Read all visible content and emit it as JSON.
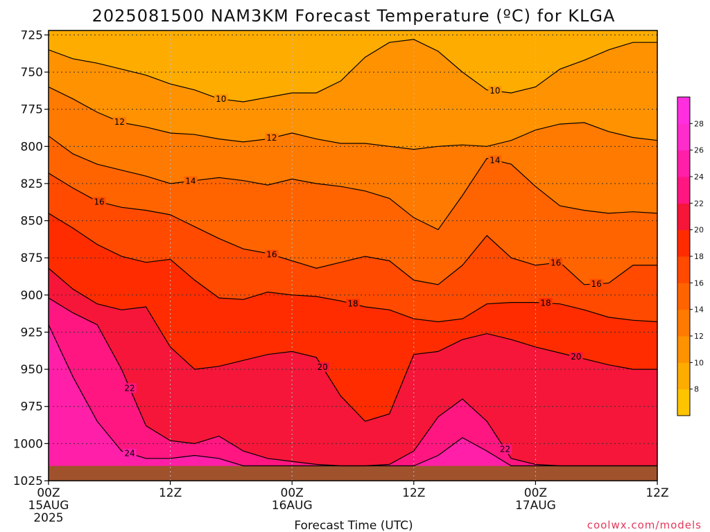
{
  "chart_data": {
    "type": "heatmap",
    "title": "2025081500 NAM3KM Forecast Temperature (ºC) for KLGA",
    "xlabel": "Forecast Time (UTC)",
    "ylabel": "",
    "credit": "coolwx.com/models",
    "y_ticks": [
      "725",
      "750",
      "775",
      "800",
      "825",
      "850",
      "875",
      "900",
      "925",
      "950",
      "975",
      "1000",
      "1025"
    ],
    "y_values": [
      725,
      750,
      775,
      800,
      825,
      850,
      875,
      900,
      925,
      950,
      975,
      1000,
      1025
    ],
    "ylim": [
      722,
      1025
    ],
    "x_ticks": [
      {
        "hour": 0,
        "label": "00Z",
        "date": "15AUG",
        "year": "2025"
      },
      {
        "hour": 12,
        "label": "12Z",
        "date": "",
        "year": ""
      },
      {
        "hour": 24,
        "label": "00Z",
        "date": "16AUG",
        "year": ""
      },
      {
        "hour": 36,
        "label": "12Z",
        "date": "",
        "year": ""
      },
      {
        "hour": 48,
        "label": "00Z",
        "date": "17AUG",
        "year": ""
      },
      {
        "hour": 60,
        "label": "12Z",
        "date": "",
        "year": ""
      }
    ],
    "xlim": [
      0,
      60
    ],
    "colorbar": {
      "labels": [
        "8",
        "10",
        "12",
        "14",
        "16",
        "18",
        "20",
        "22",
        "24",
        "26",
        "28"
      ],
      "colors": [
        "#ffc400",
        "#ffac00",
        "#ff9200",
        "#ff7a00",
        "#ff6400",
        "#ff4a00",
        "#ff2c00",
        "#f5163a",
        "#ff1680",
        "#ff1fa8",
        "#ff2ccc",
        "#ff2fe0"
      ]
    },
    "contours": [
      {
        "level": 10,
        "pressure": [
          735,
          741,
          744,
          748,
          752,
          758,
          762,
          768,
          770,
          767,
          764,
          764,
          756,
          740,
          730,
          728,
          736,
          750,
          762,
          764,
          760,
          748,
          742,
          735,
          730,
          730
        ],
        "labels": [
          {
            "hour": 17,
            "text": "10"
          },
          {
            "hour": 44,
            "text": "10"
          }
        ]
      },
      {
        "level": 12,
        "pressure": [
          760,
          768,
          777,
          784,
          787,
          791,
          792,
          795,
          797,
          795,
          791,
          795,
          798,
          798,
          800,
          802,
          800,
          799,
          800,
          796,
          789,
          785,
          784,
          790,
          794,
          796
        ],
        "labels": [
          {
            "hour": 7,
            "text": "12"
          },
          {
            "hour": 22,
            "text": "12"
          }
        ]
      },
      {
        "level": 14,
        "pressure": [
          793,
          805,
          812,
          816,
          820,
          825,
          823,
          821,
          823,
          826,
          822,
          825,
          827,
          830,
          835,
          848,
          856,
          833,
          808,
          812,
          827,
          840,
          843,
          845,
          844,
          845
        ],
        "labels": [
          {
            "hour": 14,
            "text": "14"
          },
          {
            "hour": 44,
            "text": "14"
          }
        ]
      },
      {
        "level": 16,
        "pressure": [
          818,
          828,
          837,
          841,
          843,
          846,
          854,
          862,
          869,
          872,
          877,
          882,
          878,
          874,
          877,
          890,
          893,
          880,
          860,
          875,
          880,
          878,
          893,
          892,
          880,
          880
        ],
        "labels": [
          {
            "hour": 5,
            "text": "16"
          },
          {
            "hour": 22,
            "text": "16"
          },
          {
            "hour": 50,
            "text": "16"
          },
          {
            "hour": 54,
            "text": "16"
          }
        ]
      },
      {
        "level": 18,
        "pressure": [
          845,
          855,
          866,
          874,
          878,
          876,
          890,
          902,
          903,
          898,
          900,
          901,
          904,
          908,
          910,
          916,
          918,
          916,
          906,
          905,
          905,
          906,
          910,
          915,
          917,
          918
        ],
        "labels": [
          {
            "hour": 30,
            "text": "18"
          },
          {
            "hour": 49,
            "text": "18"
          }
        ]
      },
      {
        "level": 20,
        "pressure": [
          882,
          896,
          906,
          910,
          908,
          935,
          950,
          948,
          944,
          940,
          938,
          942,
          968,
          985,
          980,
          940,
          938,
          930,
          926,
          930,
          935,
          939,
          943,
          947,
          950,
          950
        ],
        "labels": [
          {
            "hour": 27,
            "text": "20"
          },
          {
            "hour": 52,
            "text": "20"
          }
        ]
      },
      {
        "level": 22,
        "pressure": [
          902,
          912,
          920,
          950,
          988,
          998,
          1000,
          995,
          1005,
          1010,
          1012,
          1014,
          1015,
          1015,
          1014,
          1005,
          982,
          970,
          985,
          1010,
          1014,
          1015,
          1015,
          1015,
          1015,
          1015
        ],
        "labels": [
          {
            "hour": 8,
            "text": "22"
          },
          {
            "hour": 45,
            "text": "22"
          }
        ]
      },
      {
        "level": 24,
        "pressure": [
          920,
          955,
          985,
          1005,
          1010,
          1010,
          1008,
          1010,
          1015,
          1015,
          1015,
          1015,
          1015,
          1015,
          1015,
          1015,
          1008,
          996,
          1005,
          1015,
          1015,
          1015,
          1015,
          1015,
          1015,
          1015
        ],
        "labels": [
          {
            "hour": 8,
            "text": "24"
          }
        ]
      }
    ]
  }
}
